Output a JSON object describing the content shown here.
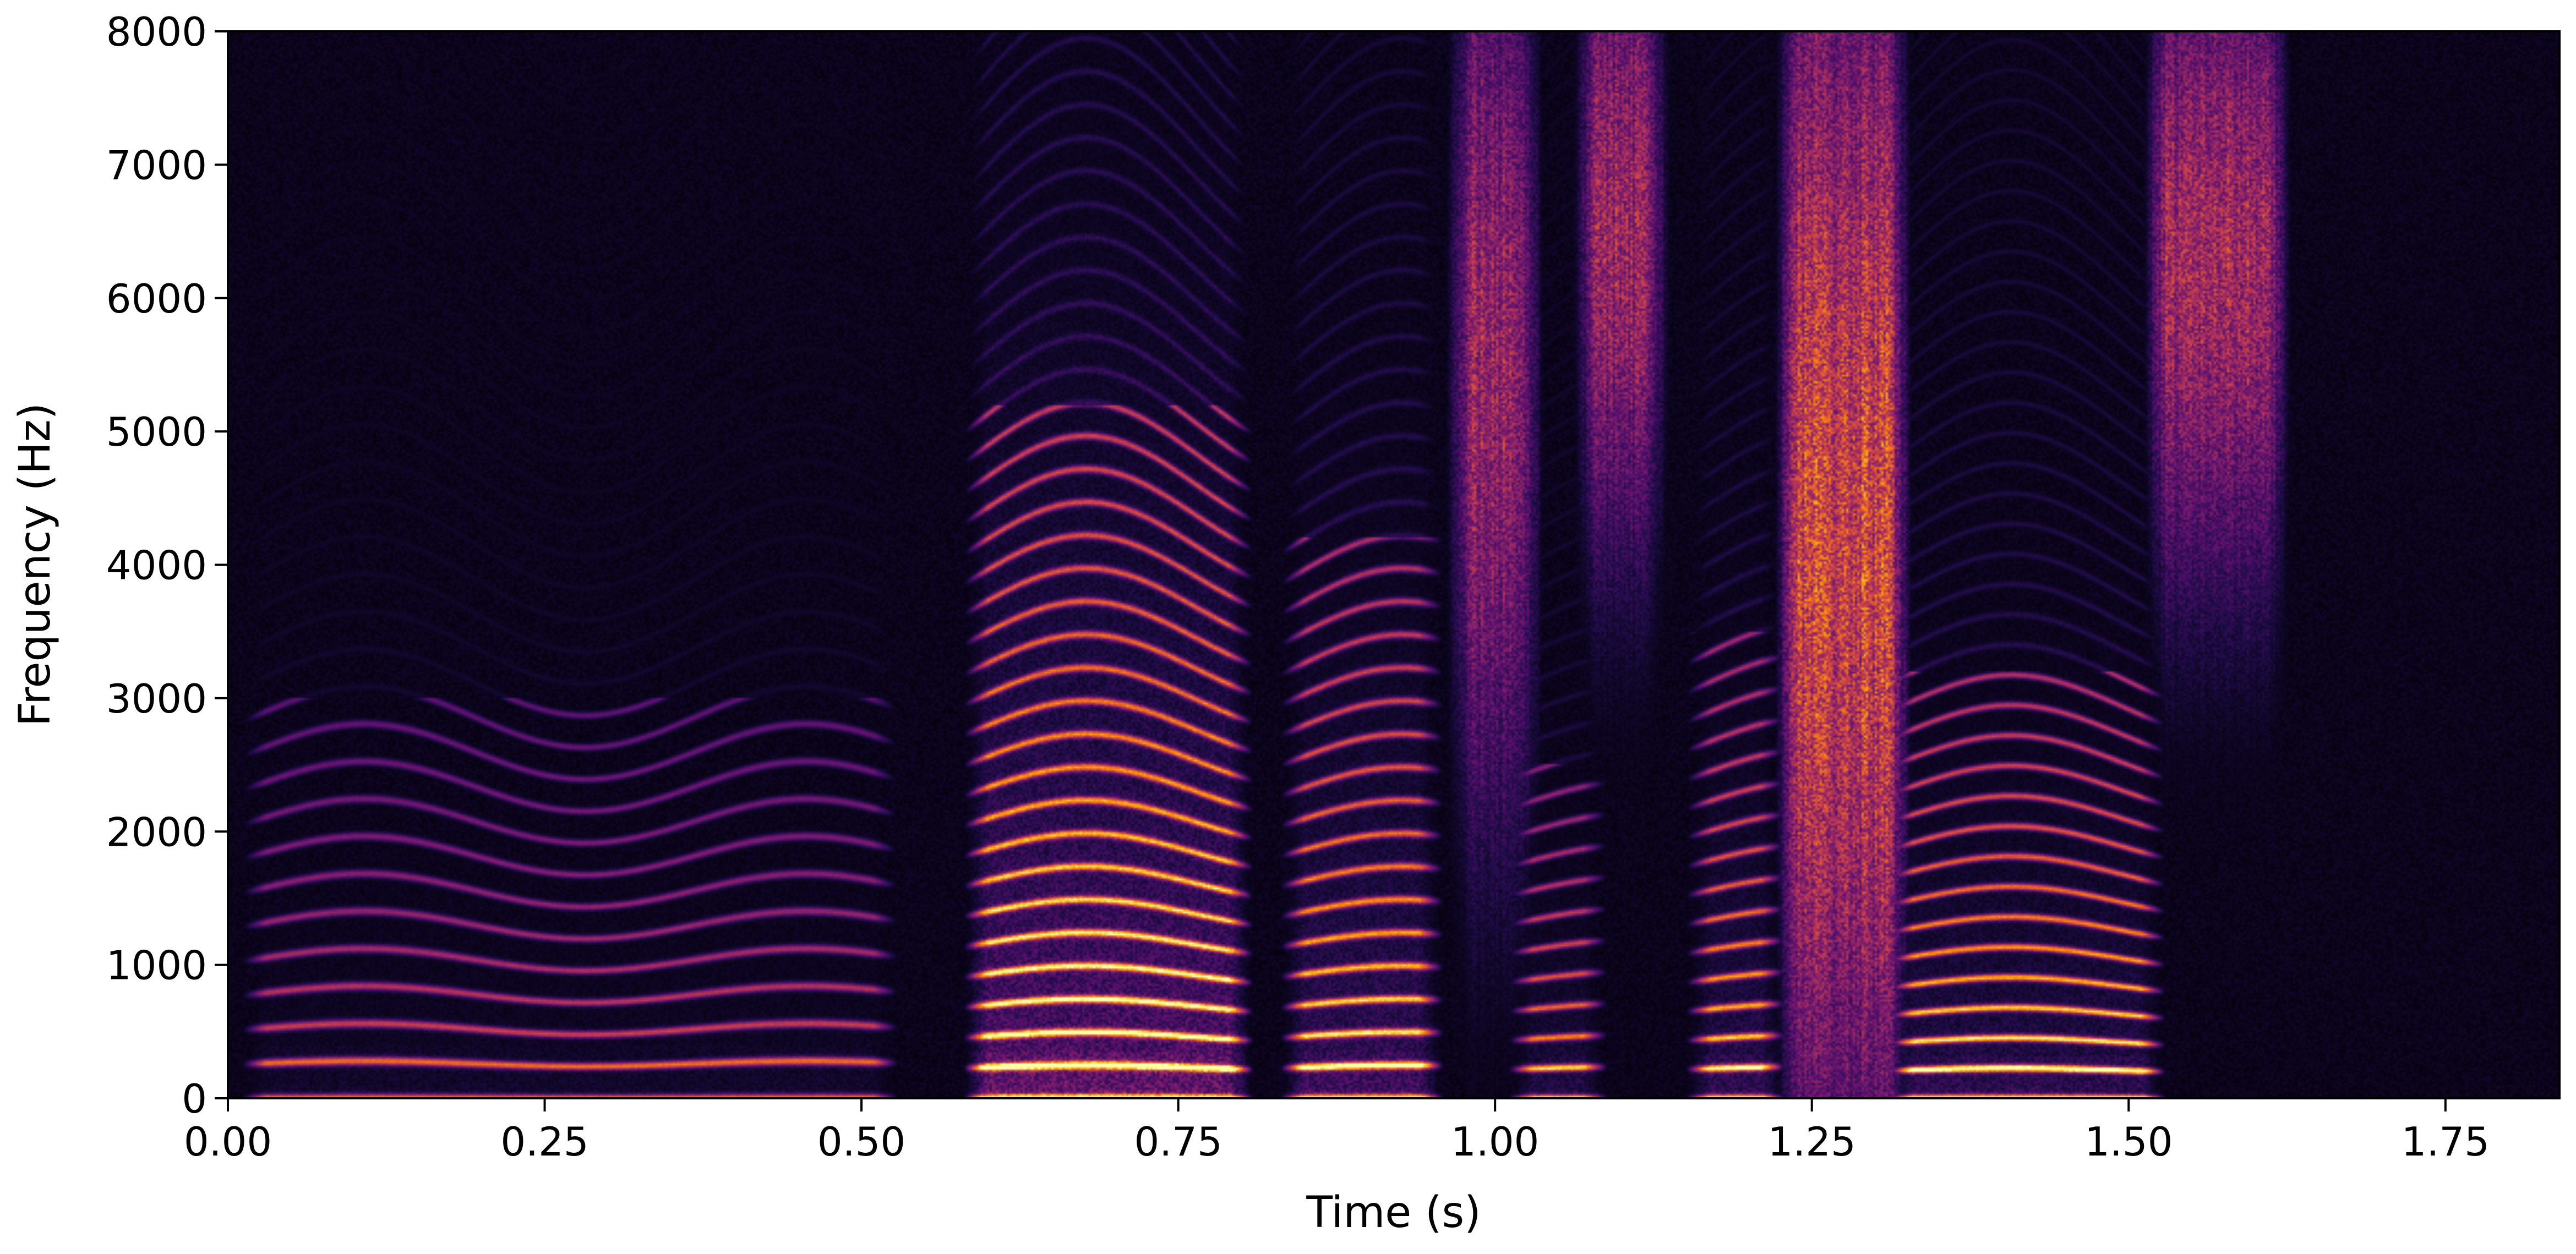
{
  "chart_data": {
    "type": "heatmap",
    "subtype": "spectrogram",
    "colormap": "inferno",
    "xlabel": "Time (s)",
    "ylabel": "Frequency (Hz)",
    "xlim": [
      0.0,
      1.84
    ],
    "ylim": [
      0,
      8000
    ],
    "x_ticks": [
      0.0,
      0.25,
      0.5,
      0.75,
      1.0,
      1.25,
      1.5,
      1.75
    ],
    "x_tick_labels": [
      "0.00",
      "0.25",
      "0.50",
      "0.75",
      "1.00",
      "1.25",
      "1.50",
      "1.75"
    ],
    "y_ticks": [
      0,
      1000,
      2000,
      3000,
      4000,
      5000,
      6000,
      7000,
      8000
    ],
    "y_tick_labels": [
      "0",
      "1000",
      "2000",
      "3000",
      "4000",
      "5000",
      "6000",
      "7000",
      "8000"
    ],
    "grid": false,
    "segments": [
      {
        "t0": 0.02,
        "t1": 0.52,
        "kind": "voiced",
        "f0": 260,
        "level": 0.55,
        "spread": 0.25,
        "harmonic_max": 3000
      },
      {
        "t0": 0.59,
        "t1": 0.8,
        "kind": "voiced",
        "f0": 230,
        "level": 1.0,
        "spread": 0.5,
        "harmonic_max": 5200
      },
      {
        "t0": 0.84,
        "t1": 0.95,
        "kind": "voiced",
        "f0": 230,
        "level": 0.9,
        "spread": 0.4,
        "harmonic_max": 4200
      },
      {
        "t0": 0.97,
        "t1": 1.03,
        "kind": "fricative",
        "fc": 5500,
        "bw": 2500,
        "level": 0.6
      },
      {
        "t0": 1.02,
        "t1": 1.08,
        "kind": "voiced",
        "f0": 220,
        "level": 0.75,
        "spread": 0.3,
        "harmonic_max": 2500
      },
      {
        "t0": 1.07,
        "t1": 1.13,
        "kind": "fricative",
        "fc": 6500,
        "bw": 1800,
        "level": 0.6
      },
      {
        "t0": 1.16,
        "t1": 1.22,
        "kind": "voiced",
        "f0": 220,
        "level": 0.85,
        "spread": 0.35,
        "harmonic_max": 3500
      },
      {
        "t0": 1.23,
        "t1": 1.32,
        "kind": "fricative",
        "fc": 4200,
        "bw": 3500,
        "level": 0.8
      },
      {
        "t0": 1.32,
        "t1": 1.52,
        "kind": "voiced",
        "f0": 210,
        "level": 0.95,
        "spread": 0.3,
        "harmonic_max": 3200
      },
      {
        "t0": 1.52,
        "t1": 1.62,
        "kind": "fricative",
        "fc": 6300,
        "bw": 1800,
        "level": 0.65
      }
    ]
  }
}
